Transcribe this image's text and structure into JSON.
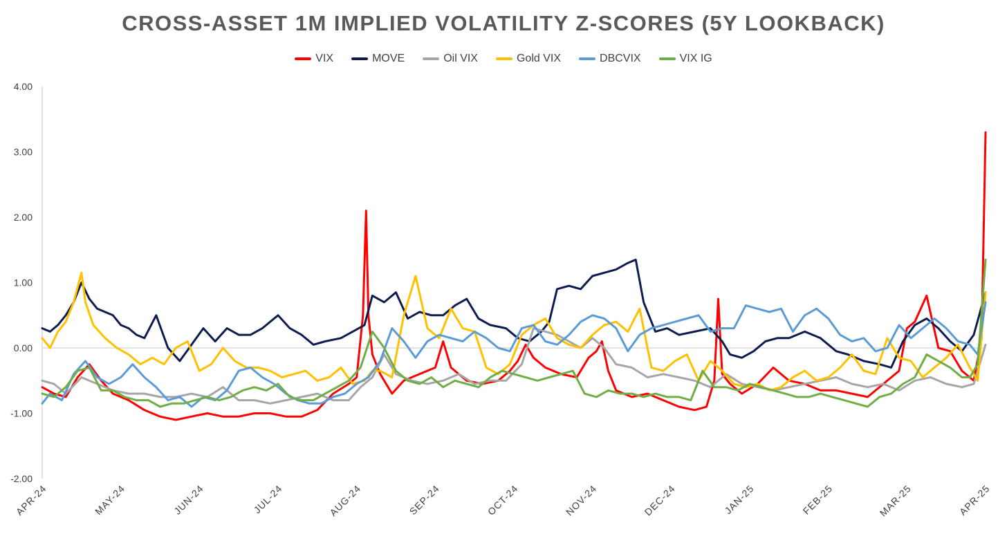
{
  "chart_data": {
    "type": "line",
    "title": "CROSS-ASSET 1M IMPLIED VOLATILITY Z-SCORES (5Y LOOKBACK)",
    "xlabel": "",
    "ylabel": "",
    "ylim": [
      -2.0,
      4.0
    ],
    "y_ticks": [
      "4.00",
      "3.00",
      "2.00",
      "1.00",
      "0.00",
      "-1.00",
      "-2.00"
    ],
    "y_tick_values": [
      4,
      3,
      2,
      1,
      0,
      -1,
      -2
    ],
    "categories": [
      "APR-24",
      "MAY-24",
      "JUN-24",
      "JUL-24",
      "AUG-24",
      "SEP-24",
      "OCT-24",
      "NOV-24",
      "DEC-24",
      "JAN-25",
      "FEB-25",
      "MAR-25",
      "APR-25"
    ],
    "legend_position": "top-center",
    "grid": false,
    "x_domain": [
      0,
      12
    ],
    "series": [
      {
        "name": "VIX",
        "color": "#ff0000",
        "x": [
          0,
          0.15,
          0.3,
          0.45,
          0.6,
          0.75,
          0.9,
          1.1,
          1.3,
          1.5,
          1.7,
          1.9,
          2.1,
          2.3,
          2.5,
          2.7,
          2.9,
          3.1,
          3.3,
          3.5,
          3.7,
          3.9,
          4.0,
          4.08,
          4.12,
          4.15,
          4.2,
          4.3,
          4.45,
          4.6,
          4.8,
          5.0,
          5.1,
          5.2,
          5.4,
          5.6,
          5.8,
          5.95,
          6.05,
          6.15,
          6.25,
          6.4,
          6.6,
          6.8,
          6.95,
          7.05,
          7.12,
          7.2,
          7.3,
          7.5,
          7.7,
          7.9,
          8.1,
          8.3,
          8.45,
          8.55,
          8.6,
          8.65,
          8.75,
          8.9,
          9.1,
          9.3,
          9.5,
          9.7,
          9.9,
          10.1,
          10.3,
          10.5,
          10.7,
          10.9,
          11.0,
          11.1,
          11.25,
          11.4,
          11.55,
          11.7,
          11.85,
          11.95,
          12.0
        ],
        "values": [
          -0.6,
          -0.7,
          -0.75,
          -0.45,
          -0.25,
          -0.5,
          -0.7,
          -0.8,
          -0.95,
          -1.05,
          -1.1,
          -1.05,
          -1.0,
          -1.05,
          -1.05,
          -1.0,
          -1.0,
          -1.05,
          -1.05,
          -0.95,
          -0.7,
          -0.55,
          -0.45,
          0.5,
          2.1,
          0.5,
          -0.1,
          -0.4,
          -0.7,
          -0.5,
          -0.4,
          -0.3,
          0.1,
          -0.3,
          -0.5,
          -0.55,
          -0.5,
          -0.35,
          -0.2,
          0.05,
          -0.15,
          -0.3,
          -0.4,
          -0.45,
          -0.15,
          -0.05,
          0.1,
          -0.35,
          -0.65,
          -0.75,
          -0.7,
          -0.8,
          -0.9,
          -0.95,
          -0.9,
          -0.5,
          0.75,
          -0.4,
          -0.55,
          -0.7,
          -0.55,
          -0.3,
          -0.5,
          -0.55,
          -0.65,
          -0.65,
          -0.7,
          -0.75,
          -0.55,
          -0.35,
          0.3,
          0.4,
          0.8,
          0.0,
          -0.05,
          -0.35,
          -0.5,
          0.15,
          3.3
        ]
      },
      {
        "name": "MOVE",
        "color": "#0d1b4f",
        "x": [
          0,
          0.1,
          0.2,
          0.3,
          0.4,
          0.5,
          0.6,
          0.7,
          0.8,
          0.9,
          1.0,
          1.1,
          1.2,
          1.3,
          1.45,
          1.6,
          1.75,
          1.9,
          2.05,
          2.2,
          2.35,
          2.5,
          2.65,
          2.8,
          3.0,
          3.15,
          3.3,
          3.45,
          3.6,
          3.8,
          3.95,
          4.1,
          4.2,
          4.35,
          4.5,
          4.65,
          4.8,
          4.95,
          5.1,
          5.25,
          5.4,
          5.55,
          5.7,
          5.9,
          6.05,
          6.2,
          6.35,
          6.45,
          6.55,
          6.7,
          6.85,
          7.0,
          7.15,
          7.3,
          7.45,
          7.55,
          7.65,
          7.8,
          7.95,
          8.1,
          8.3,
          8.5,
          8.65,
          8.75,
          8.9,
          9.05,
          9.2,
          9.35,
          9.5,
          9.7,
          9.9,
          10.1,
          10.25,
          10.45,
          10.65,
          10.8,
          10.95,
          11.1,
          11.25,
          11.4,
          11.55,
          11.7,
          11.85,
          12.0
        ],
        "values": [
          0.3,
          0.25,
          0.35,
          0.5,
          0.7,
          1.0,
          0.75,
          0.6,
          0.55,
          0.5,
          0.35,
          0.3,
          0.2,
          0.15,
          0.5,
          0.0,
          -0.2,
          0.05,
          0.3,
          0.1,
          0.3,
          0.2,
          0.2,
          0.3,
          0.5,
          0.3,
          0.2,
          0.05,
          0.1,
          0.15,
          0.25,
          0.35,
          0.8,
          0.7,
          0.85,
          0.45,
          0.55,
          0.5,
          0.5,
          0.65,
          0.75,
          0.45,
          0.35,
          0.3,
          0.15,
          0.1,
          0.25,
          0.4,
          0.9,
          0.95,
          0.9,
          1.1,
          1.15,
          1.2,
          1.3,
          1.35,
          0.7,
          0.25,
          0.3,
          0.2,
          0.25,
          0.3,
          0.1,
          -0.1,
          -0.15,
          -0.05,
          0.1,
          0.15,
          0.15,
          0.25,
          0.15,
          -0.05,
          -0.1,
          -0.2,
          -0.25,
          -0.3,
          0.1,
          0.35,
          0.45,
          0.3,
          0.1,
          -0.05,
          0.2,
          0.85
        ]
      },
      {
        "name": "Oil VIX",
        "color": "#a6a6a6",
        "x": [
          0,
          0.15,
          0.3,
          0.5,
          0.7,
          0.9,
          1.1,
          1.3,
          1.5,
          1.7,
          1.9,
          2.1,
          2.3,
          2.5,
          2.7,
          2.9,
          3.1,
          3.3,
          3.5,
          3.7,
          3.9,
          4.05,
          4.2,
          4.35,
          4.5,
          4.7,
          4.9,
          5.1,
          5.3,
          5.5,
          5.7,
          5.9,
          6.1,
          6.25,
          6.4,
          6.55,
          6.7,
          6.85,
          7.0,
          7.15,
          7.3,
          7.5,
          7.7,
          7.9,
          8.1,
          8.3,
          8.5,
          8.7,
          8.9,
          9.1,
          9.3,
          9.5,
          9.7,
          9.9,
          10.1,
          10.3,
          10.5,
          10.7,
          10.9,
          11.1,
          11.3,
          11.5,
          11.7,
          11.85,
          12.0
        ],
        "values": [
          -0.5,
          -0.55,
          -0.7,
          -0.45,
          -0.55,
          -0.65,
          -0.7,
          -0.7,
          -0.75,
          -0.75,
          -0.7,
          -0.75,
          -0.6,
          -0.8,
          -0.8,
          -0.85,
          -0.8,
          -0.75,
          -0.7,
          -0.8,
          -0.8,
          -0.6,
          -0.45,
          -0.1,
          -0.4,
          -0.5,
          -0.55,
          -0.5,
          -0.4,
          -0.55,
          -0.5,
          -0.5,
          -0.25,
          0.3,
          0.25,
          0.2,
          0.1,
          0.0,
          0.15,
          0.0,
          -0.25,
          -0.3,
          -0.45,
          -0.4,
          -0.45,
          -0.5,
          -0.6,
          -0.4,
          -0.55,
          -0.6,
          -0.65,
          -0.6,
          -0.55,
          -0.5,
          -0.45,
          -0.55,
          -0.6,
          -0.55,
          -0.65,
          -0.5,
          -0.45,
          -0.55,
          -0.6,
          -0.55,
          0.05
        ]
      },
      {
        "name": "Gold VIX",
        "color": "#ffc000",
        "x": [
          0,
          0.1,
          0.2,
          0.3,
          0.4,
          0.5,
          0.55,
          0.65,
          0.8,
          0.95,
          1.1,
          1.25,
          1.4,
          1.55,
          1.7,
          1.85,
          2.0,
          2.15,
          2.3,
          2.45,
          2.6,
          2.75,
          2.9,
          3.05,
          3.2,
          3.35,
          3.5,
          3.65,
          3.8,
          3.95,
          4.1,
          4.2,
          4.3,
          4.45,
          4.6,
          4.75,
          4.9,
          5.05,
          5.2,
          5.35,
          5.5,
          5.65,
          5.8,
          5.95,
          6.1,
          6.25,
          6.4,
          6.55,
          6.7,
          6.85,
          7.0,
          7.15,
          7.3,
          7.45,
          7.6,
          7.75,
          7.9,
          8.05,
          8.2,
          8.35,
          8.5,
          8.65,
          8.8,
          8.95,
          9.1,
          9.25,
          9.4,
          9.55,
          9.7,
          9.85,
          10.0,
          10.15,
          10.3,
          10.45,
          10.6,
          10.75,
          10.9,
          11.05,
          11.2,
          11.35,
          11.5,
          11.65,
          11.8,
          11.9,
          12.0
        ],
        "values": [
          0.15,
          0.0,
          0.25,
          0.4,
          0.7,
          1.15,
          0.7,
          0.35,
          0.15,
          0.0,
          -0.1,
          -0.25,
          -0.15,
          -0.25,
          0.0,
          0.1,
          -0.35,
          -0.25,
          0.0,
          -0.2,
          -0.3,
          -0.3,
          -0.35,
          -0.45,
          -0.4,
          -0.35,
          -0.5,
          -0.45,
          -0.3,
          -0.55,
          -0.5,
          -0.35,
          -0.35,
          -0.45,
          0.5,
          1.1,
          0.3,
          0.15,
          0.6,
          0.3,
          0.25,
          -0.3,
          -0.4,
          -0.25,
          0.2,
          0.35,
          0.45,
          0.15,
          0.05,
          0.0,
          0.2,
          0.35,
          0.4,
          0.25,
          0.6,
          -0.3,
          -0.35,
          -0.2,
          -0.1,
          -0.5,
          -0.2,
          -0.35,
          -0.55,
          -0.6,
          -0.55,
          -0.65,
          -0.6,
          -0.45,
          -0.35,
          -0.5,
          -0.45,
          -0.3,
          -0.1,
          -0.35,
          -0.4,
          0.15,
          -0.15,
          -0.2,
          -0.45,
          -0.3,
          -0.15,
          0.05,
          -0.3,
          -0.5,
          0.85
        ]
      },
      {
        "name": "DBCVIX",
        "color": "#5b9bd5",
        "x": [
          0,
          0.1,
          0.25,
          0.4,
          0.55,
          0.7,
          0.85,
          1.0,
          1.15,
          1.3,
          1.45,
          1.6,
          1.75,
          1.9,
          2.05,
          2.2,
          2.35,
          2.5,
          2.65,
          2.8,
          2.95,
          3.1,
          3.25,
          3.4,
          3.55,
          3.7,
          3.85,
          4.0,
          4.15,
          4.3,
          4.45,
          4.6,
          4.75,
          4.9,
          5.05,
          5.2,
          5.35,
          5.5,
          5.65,
          5.8,
          5.95,
          6.1,
          6.25,
          6.4,
          6.55,
          6.7,
          6.85,
          7.0,
          7.15,
          7.3,
          7.45,
          7.6,
          7.75,
          7.9,
          8.05,
          8.2,
          8.35,
          8.5,
          8.65,
          8.8,
          8.95,
          9.1,
          9.25,
          9.4,
          9.55,
          9.7,
          9.85,
          10.0,
          10.15,
          10.3,
          10.45,
          10.6,
          10.75,
          10.9,
          11.05,
          11.2,
          11.35,
          11.5,
          11.65,
          11.8,
          11.9,
          12.0
        ],
        "values": [
          -0.85,
          -0.7,
          -0.8,
          -0.4,
          -0.2,
          -0.45,
          -0.55,
          -0.45,
          -0.25,
          -0.45,
          -0.6,
          -0.8,
          -0.75,
          -0.9,
          -0.75,
          -0.8,
          -0.65,
          -0.35,
          -0.3,
          -0.45,
          -0.55,
          -0.7,
          -0.8,
          -0.85,
          -0.85,
          -0.75,
          -0.7,
          -0.55,
          -0.45,
          -0.2,
          0.3,
          0.1,
          -0.15,
          0.1,
          0.2,
          0.15,
          0.1,
          0.25,
          0.15,
          0.0,
          -0.05,
          0.3,
          0.35,
          0.1,
          0.05,
          0.2,
          0.4,
          0.5,
          0.45,
          0.3,
          -0.05,
          0.2,
          0.3,
          0.35,
          0.4,
          0.45,
          0.5,
          0.25,
          0.3,
          0.3,
          0.65,
          0.6,
          0.55,
          0.6,
          0.25,
          0.5,
          0.6,
          0.45,
          0.2,
          0.1,
          0.15,
          -0.05,
          0.0,
          0.35,
          0.15,
          0.3,
          0.45,
          0.3,
          0.1,
          0.05,
          -0.1,
          0.7
        ]
      },
      {
        "name": "VIX IG",
        "color": "#70ad47",
        "x": [
          0,
          0.15,
          0.3,
          0.45,
          0.6,
          0.75,
          0.9,
          1.05,
          1.2,
          1.35,
          1.5,
          1.65,
          1.8,
          1.95,
          2.1,
          2.25,
          2.4,
          2.55,
          2.7,
          2.85,
          3.0,
          3.15,
          3.3,
          3.45,
          3.6,
          3.75,
          3.9,
          4.05,
          4.2,
          4.35,
          4.5,
          4.65,
          4.8,
          4.95,
          5.1,
          5.25,
          5.4,
          5.55,
          5.7,
          5.85,
          6.0,
          6.15,
          6.3,
          6.45,
          6.6,
          6.75,
          6.9,
          7.05,
          7.2,
          7.35,
          7.5,
          7.65,
          7.8,
          7.95,
          8.1,
          8.25,
          8.4,
          8.55,
          8.7,
          8.85,
          9.0,
          9.15,
          9.3,
          9.45,
          9.6,
          9.75,
          9.9,
          10.05,
          10.2,
          10.35,
          10.5,
          10.65,
          10.8,
          10.95,
          11.1,
          11.25,
          11.4,
          11.55,
          11.7,
          11.8,
          11.9,
          12.0
        ],
        "values": [
          -0.7,
          -0.75,
          -0.6,
          -0.35,
          -0.3,
          -0.65,
          -0.65,
          -0.75,
          -0.8,
          -0.8,
          -0.9,
          -0.85,
          -0.85,
          -0.8,
          -0.75,
          -0.8,
          -0.75,
          -0.65,
          -0.6,
          -0.65,
          -0.55,
          -0.75,
          -0.8,
          -0.8,
          -0.7,
          -0.6,
          -0.5,
          -0.3,
          0.25,
          0.0,
          -0.35,
          -0.5,
          -0.55,
          -0.45,
          -0.6,
          -0.5,
          -0.55,
          -0.6,
          -0.45,
          -0.35,
          -0.4,
          -0.45,
          -0.5,
          -0.45,
          -0.4,
          -0.35,
          -0.7,
          -0.75,
          -0.65,
          -0.7,
          -0.7,
          -0.75,
          -0.7,
          -0.75,
          -0.75,
          -0.8,
          -0.35,
          -0.6,
          -0.6,
          -0.65,
          -0.55,
          -0.6,
          -0.65,
          -0.7,
          -0.75,
          -0.75,
          -0.7,
          -0.75,
          -0.8,
          -0.85,
          -0.9,
          -0.75,
          -0.7,
          -0.55,
          -0.45,
          -0.1,
          -0.2,
          -0.3,
          -0.45,
          -0.45,
          -0.25,
          1.35
        ]
      }
    ]
  }
}
